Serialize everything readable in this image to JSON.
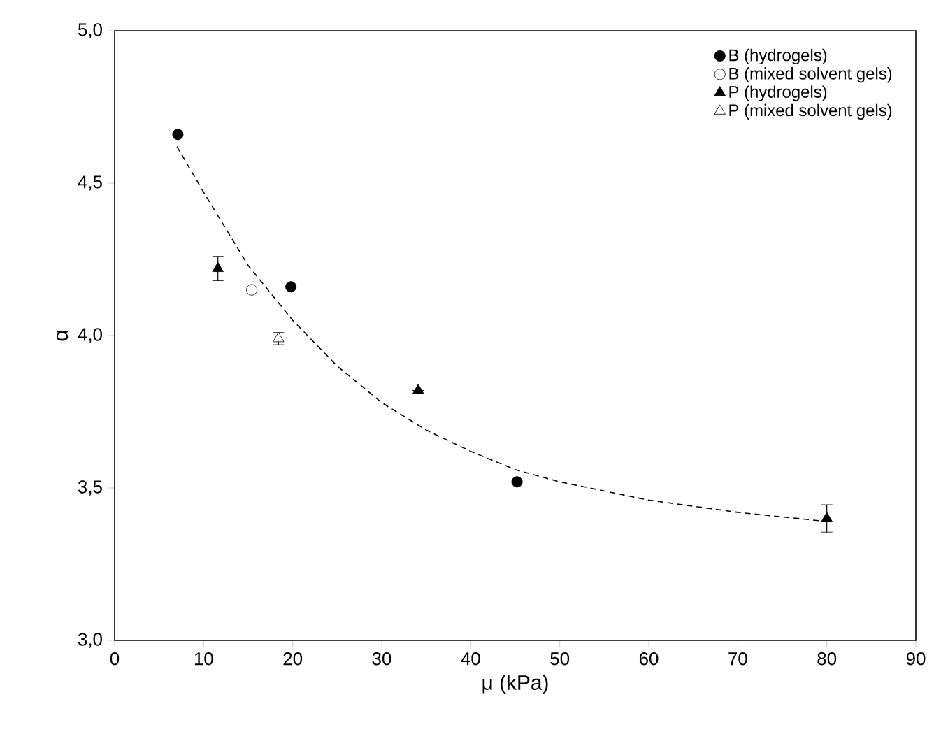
{
  "chart_data": {
    "type": "scatter",
    "xlabel": "μ (kPa)",
    "ylabel": "α",
    "xlim": [
      0,
      90
    ],
    "ylim": [
      3.0,
      5.0
    ],
    "xticks": [
      0,
      10,
      20,
      30,
      40,
      50,
      60,
      70,
      80,
      90
    ],
    "yticks": [
      {
        "value": 3.0,
        "label": "3,0"
      },
      {
        "value": 3.5,
        "label": "3,5"
      },
      {
        "value": 4.0,
        "label": "4,0"
      },
      {
        "value": 4.5,
        "label": "4,5"
      },
      {
        "value": 5.0,
        "label": "5,0"
      }
    ],
    "legend": "top right",
    "grid": false,
    "series": [
      {
        "name": "B (hydrogels)",
        "color": "#000000",
        "marker": "circle",
        "x": [
          7.1,
          19.8,
          45.2
        ],
        "values": [
          4.66,
          4.16,
          3.52
        ]
      },
      {
        "name": "B (mixed solvent gels)",
        "color": "#ffffff",
        "marker": "circle",
        "x": [
          15.4
        ],
        "values": [
          4.15
        ]
      },
      {
        "name": "P (hydrogels)",
        "color": "#000000",
        "marker": "triangle",
        "x": [
          11.6,
          34.1,
          80.0
        ],
        "values": [
          4.22,
          3.82,
          3.4
        ],
        "errors": [
          0.04,
          null,
          0.045
        ]
      },
      {
        "name": "P (mixed solvent gels)",
        "color": "#ffffff",
        "marker": "triangle",
        "x": [
          18.4
        ],
        "values": [
          3.99
        ],
        "errors": [
          0.02
        ]
      },
      {
        "type": "line",
        "line_style": "dashed",
        "marker": "none",
        "color": "#000000",
        "x": [
          7,
          10,
          15,
          20,
          25,
          30,
          35,
          40,
          45,
          50,
          60,
          70,
          80
        ],
        "values": [
          4.62,
          4.47,
          4.23,
          4.05,
          3.9,
          3.78,
          3.69,
          3.62,
          3.56,
          3.52,
          3.46,
          3.42,
          3.39
        ]
      }
    ]
  }
}
